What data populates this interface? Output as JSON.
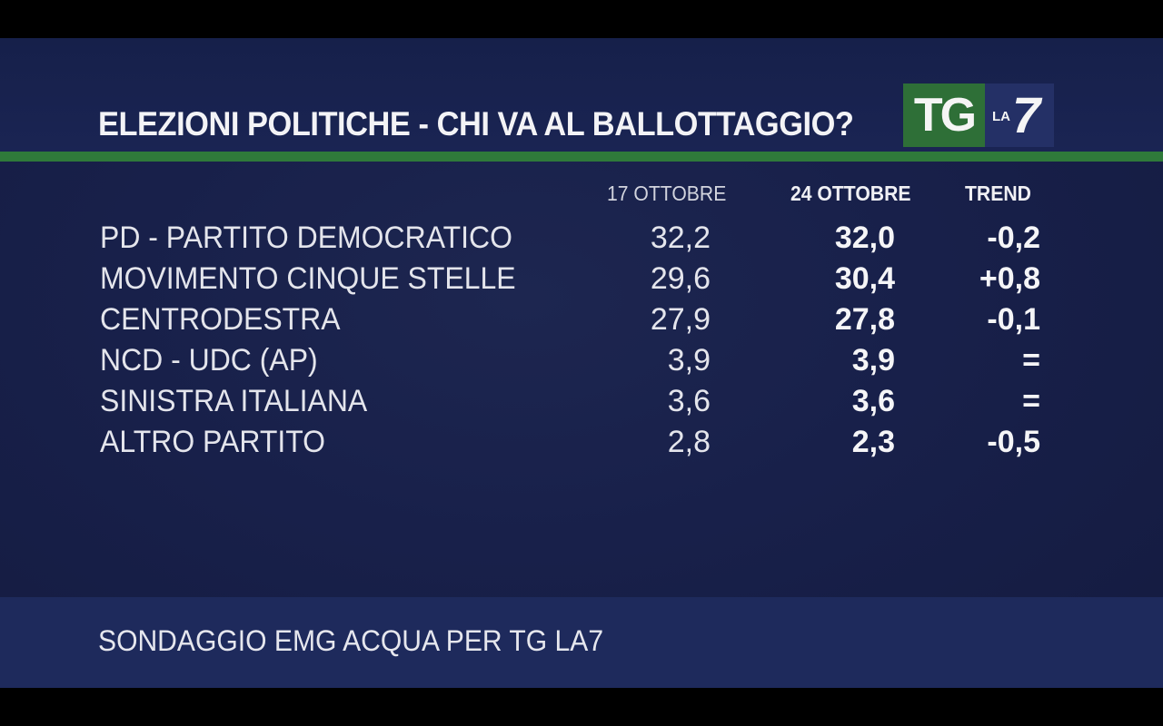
{
  "title": "ELEZIONI POLITICHE - CHI VA AL BALLOTTAGGIO?",
  "logo": {
    "tg": "TG",
    "la": "LA",
    "seven": "7"
  },
  "columns": [
    "17 OTTOBRE",
    "24 OTTOBRE",
    "TREND"
  ],
  "rows": [
    {
      "party": "PD - PARTITO DEMOCRATICO",
      "oct17": "32,2",
      "oct24": "32,0",
      "trend": "-0,2"
    },
    {
      "party": "MOVIMENTO CINQUE STELLE",
      "oct17": "29,6",
      "oct24": "30,4",
      "trend": "+0,8"
    },
    {
      "party": "CENTRODESTRA",
      "oct17": "27,9",
      "oct24": "27,8",
      "trend": "-0,1"
    },
    {
      "party": "NCD - UDC (AP)",
      "oct17": "3,9",
      "oct24": "3,9",
      "trend": "="
    },
    {
      "party": "SINISTRA ITALIANA",
      "oct17": "3,6",
      "oct24": "3,6",
      "trend": "="
    },
    {
      "party": "ALTRO PARTITO",
      "oct17": "2,8",
      "oct24": "2,3",
      "trend": "-0,5"
    }
  ],
  "source": "SONDAGGIO EMG ACQUA PER TG LA7",
  "colors": {
    "background": "#18204a",
    "green_rule": "#2f7a3a",
    "logo_green": "#2e6f37",
    "logo_blue": "#243066",
    "footer": "#1e2a5c"
  }
}
